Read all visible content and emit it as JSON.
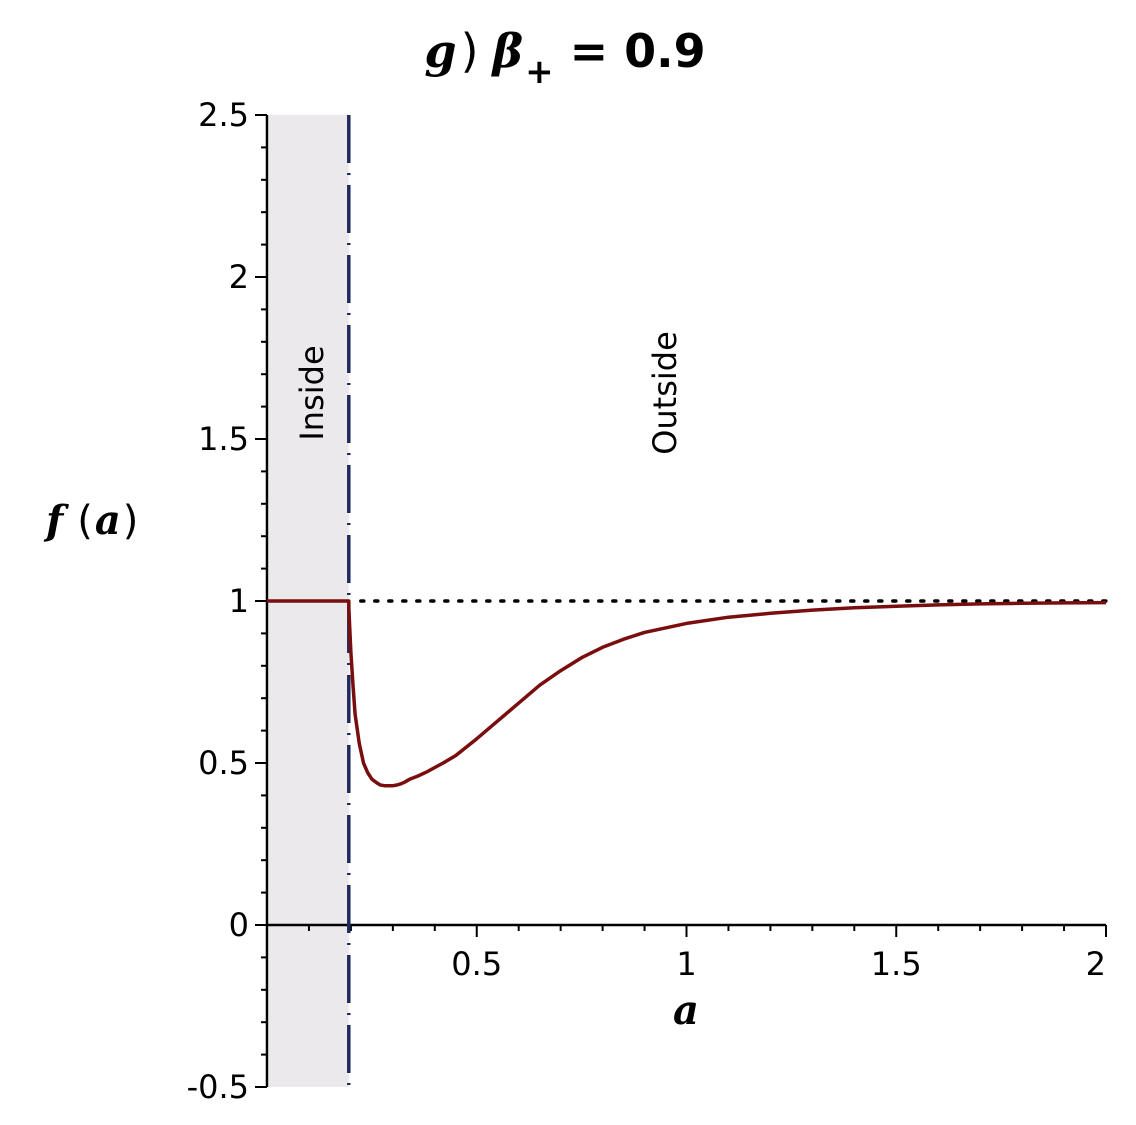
{
  "chart_data": {
    "type": "line",
    "title": {
      "letter": "g",
      "paren": ")",
      "symbol": "β",
      "subscript": "+",
      "rest": "= 0.9"
    },
    "xlabel": "a",
    "ylabel": {
      "func": "f",
      "open": "(",
      "arg": "a",
      "close": ")"
    },
    "xlim": [
      0,
      2
    ],
    "ylim": [
      -0.5,
      2.5
    ],
    "x_ticks": [
      {
        "value": 0.5,
        "label": "0.5"
      },
      {
        "value": 1,
        "label": "1"
      },
      {
        "value": 1.5,
        "label": "1.5"
      },
      {
        "value": 2,
        "label": "2"
      }
    ],
    "y_ticks": [
      {
        "value": -0.5,
        "label": "-0.5"
      },
      {
        "value": 0,
        "label": "0"
      },
      {
        "value": 0.5,
        "label": "0.5"
      },
      {
        "value": 1,
        "label": "1"
      },
      {
        "value": 1.5,
        "label": "1.5"
      },
      {
        "value": 2,
        "label": "2"
      },
      {
        "value": 2.5,
        "label": "2.5"
      }
    ],
    "shaded_region": {
      "x_from": 0,
      "x_to": 0.195,
      "label": "Inside",
      "color": "#ece9ec"
    },
    "outside_label": "Outside",
    "boundary_x": 0.195,
    "boundary_color": "#1f2a5c",
    "reference_line_y": 1,
    "series": [
      {
        "color": "#7a0e0e",
        "x": [
          0.0,
          0.195,
          0.195,
          0.2,
          0.205,
          0.21,
          0.22,
          0.23,
          0.24,
          0.25,
          0.26,
          0.27,
          0.28,
          0.29,
          0.3,
          0.31,
          0.32,
          0.33,
          0.34,
          0.36,
          0.38,
          0.4,
          0.42,
          0.45,
          0.5,
          0.55,
          0.6,
          0.65,
          0.7,
          0.75,
          0.8,
          0.85,
          0.9,
          1.0,
          1.1,
          1.2,
          1.3,
          1.4,
          1.5,
          1.6,
          1.7,
          1.8,
          1.9,
          2.0
        ],
        "y": [
          1.0,
          1.0,
          0.98,
          0.84,
          0.74,
          0.65,
          0.56,
          0.5,
          0.47,
          0.45,
          0.44,
          0.432,
          0.43,
          0.43,
          0.43,
          0.432,
          0.436,
          0.442,
          0.45,
          0.46,
          0.472,
          0.486,
          0.5,
          0.523,
          0.575,
          0.63,
          0.685,
          0.74,
          0.785,
          0.825,
          0.857,
          0.882,
          0.903,
          0.931,
          0.95,
          0.962,
          0.972,
          0.979,
          0.984,
          0.988,
          0.991,
          0.993,
          0.994,
          0.995
        ]
      }
    ]
  }
}
